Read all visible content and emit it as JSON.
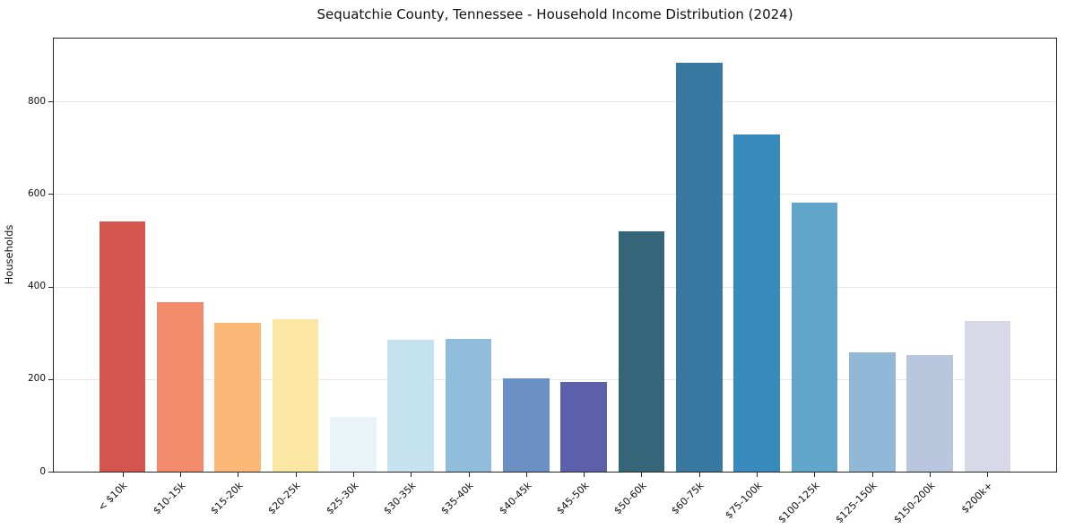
{
  "chart_data": {
    "type": "bar",
    "title": "Sequatchie County, Tennessee - Household Income Distribution (2024)",
    "xlabel": "",
    "ylabel": "Households",
    "categories": [
      "< $10k",
      "$10-15k",
      "$15-20k",
      "$20-25k",
      "$25-30k",
      "$30-35k",
      "$35-40k",
      "$40-45k",
      "$45-50k",
      "$50-60k",
      "$60-75k",
      "$75-100k",
      "$100-125k",
      "$125-150k",
      "$150-200k",
      "$200k+"
    ],
    "values": [
      540,
      367,
      322,
      330,
      119,
      284,
      287,
      202,
      194,
      519,
      884,
      729,
      582,
      257,
      251,
      325
    ],
    "bar_colors": [
      "#d5564f",
      "#f28a6c",
      "#fbb877",
      "#fce6a4",
      "#e9f3f8",
      "#c4e2f0",
      "#90bddc",
      "#6b91c4",
      "#5c60ab",
      "#356578",
      "#3879a1",
      "#3889bc",
      "#61a5cb",
      "#91b9d7",
      "#b9c7de",
      "#d7d9e7"
    ],
    "yticks": [
      0,
      200,
      400,
      600,
      800
    ],
    "ylim": [
      0,
      936
    ],
    "grid": "horizontal",
    "gridline_color": "#e7e7e7",
    "spine_color": "#262626",
    "text_color": "#111111",
    "legend_position": "none",
    "xtick_rotation": 45,
    "bar_width_ratio": 0.8
  }
}
